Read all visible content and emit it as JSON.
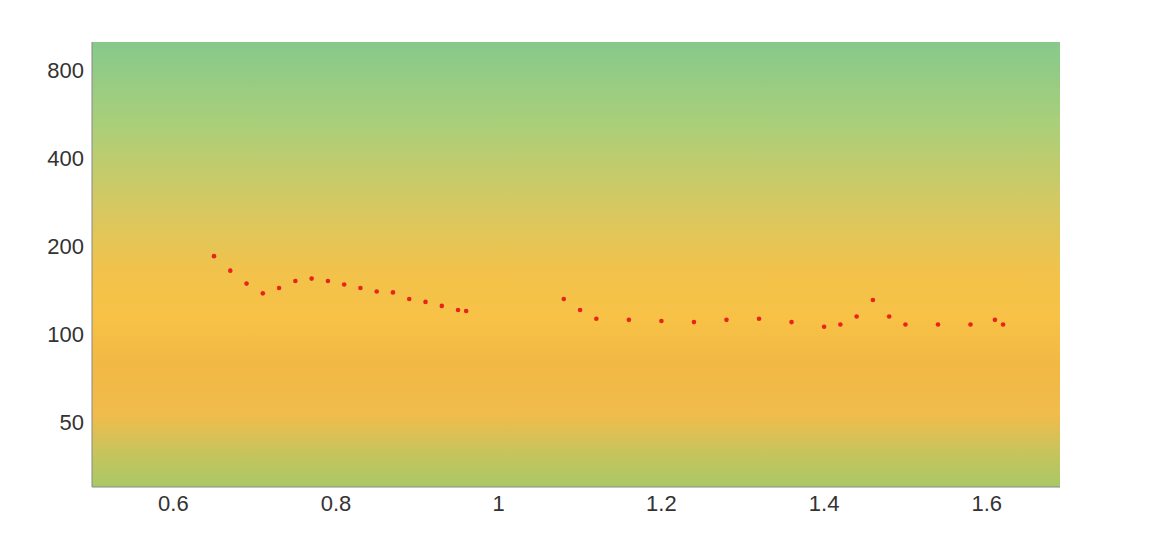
{
  "chart_data": {
    "type": "scatter",
    "x": [
      0.65,
      0.67,
      0.69,
      0.71,
      0.73,
      0.75,
      0.77,
      0.79,
      0.81,
      0.83,
      0.85,
      0.87,
      0.89,
      0.91,
      0.93,
      0.95,
      0.96,
      1.08,
      1.1,
      1.12,
      1.16,
      1.2,
      1.24,
      1.28,
      1.32,
      1.36,
      1.4,
      1.42,
      1.44,
      1.46,
      1.48,
      1.5,
      1.54,
      1.58,
      1.61,
      1.62
    ],
    "values": [
      185,
      165,
      149,
      138,
      144,
      152,
      155,
      152,
      148,
      144,
      140,
      139,
      132,
      129,
      125,
      121,
      120,
      132,
      121,
      113,
      112,
      111,
      110,
      112,
      113,
      110,
      106,
      108,
      115,
      131,
      115,
      108,
      108,
      108,
      112,
      108
    ],
    "color": "#e8231c",
    "marker": "circle",
    "log": "y",
    "xlim": [
      0.5,
      1.69
    ],
    "xticks": [
      0.6,
      0.8,
      1,
      1.2,
      1.4,
      1.6
    ],
    "ylim": [
      30,
      1000
    ],
    "yticks": [
      50,
      100,
      200,
      400,
      800
    ]
  }
}
